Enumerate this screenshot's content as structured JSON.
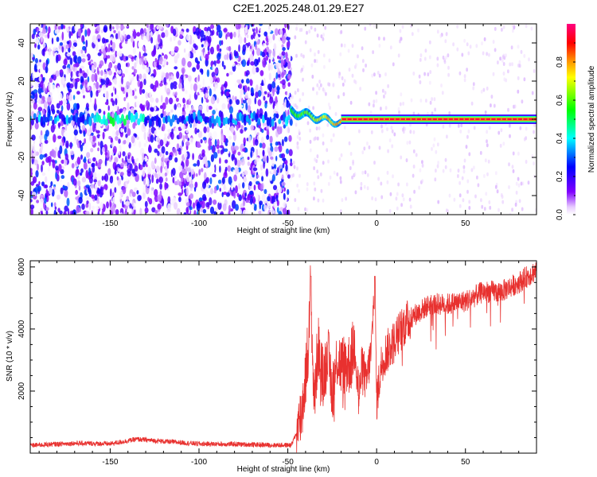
{
  "title": "C2E1.2025.248.01.29.E27",
  "chart_data": [
    {
      "type": "heatmap",
      "xlabel": "Height of straight line (km)",
      "ylabel": "Frequency (Hz)",
      "xlim": [
        -195,
        90
      ],
      "ylim": [
        -50,
        50
      ],
      "xticks": [
        -150,
        -100,
        -50,
        0,
        50
      ],
      "yticks": [
        -40,
        -20,
        0,
        20,
        40
      ],
      "colorbar": {
        "label": "Normalized spectral amplitude",
        "range": [
          0,
          1
        ],
        "ticks": [
          0.0,
          0.2,
          0.4,
          0.6,
          0.8
        ],
        "colors": [
          "#ffffff",
          "#d9b3ff",
          "#8000ff",
          "#0000ff",
          "#00ffff",
          "#00ff00",
          "#ffff00",
          "#ff8000",
          "#ff0000",
          "#ff0080"
        ]
      },
      "regions": [
        {
          "x": [
            -195,
            -48
          ],
          "description": "broadband noise, amplitude ~0.05-0.35"
        },
        {
          "x": [
            -48,
            -20
          ],
          "y_center": 0,
          "description": "signal emerging, amplitude ~0.5-0.7"
        },
        {
          "x": [
            -20,
            90
          ],
          "y_center": 0,
          "description": "strong narrowband line near 0 Hz, amplitude ~0.9-1.0"
        }
      ]
    },
    {
      "type": "line",
      "xlabel": "Height of straight line (km)",
      "ylabel": "SNR (10 * v/v)",
      "xlim": [
        -195,
        90
      ],
      "ylim": [
        0,
        6200
      ],
      "xticks": [
        -150,
        -100,
        -50,
        0,
        50
      ],
      "yticks": [
        2000,
        4000,
        6000
      ],
      "color": "#e8312f",
      "x": [
        -195,
        -170,
        -150,
        -135,
        -120,
        -100,
        -80,
        -60,
        -48,
        -44,
        -42,
        -40,
        -38,
        -37,
        -36,
        -35,
        -33,
        -30,
        -28,
        -25,
        -22,
        -20,
        -15,
        -12,
        -10,
        -8,
        -6,
        -3,
        -1,
        0,
        3,
        6,
        10,
        15,
        20,
        25,
        30,
        40,
        50,
        60,
        70,
        80,
        90
      ],
      "y": [
        250,
        320,
        300,
        450,
        380,
        300,
        290,
        260,
        260,
        800,
        1400,
        2500,
        3900,
        5700,
        2800,
        1700,
        3500,
        2300,
        3400,
        2000,
        3100,
        2800,
        2900,
        3600,
        1700,
        3000,
        2200,
        3300,
        5700,
        1700,
        3000,
        3300,
        3600,
        4100,
        4400,
        4600,
        4800,
        4800,
        4900,
        5200,
        5200,
        5500,
        5900
      ]
    }
  ]
}
